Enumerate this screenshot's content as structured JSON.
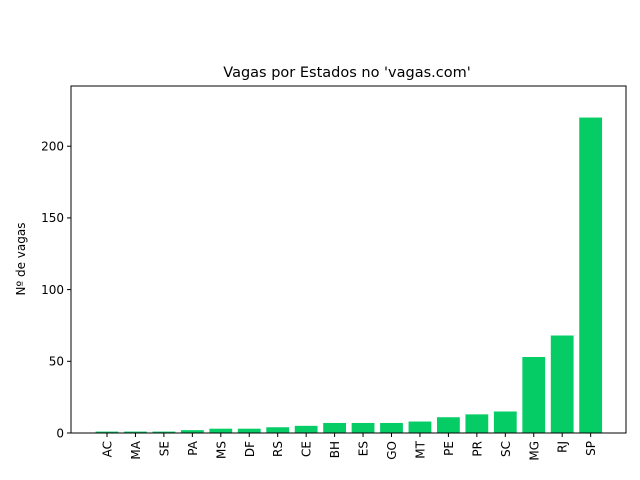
{
  "chart_data": {
    "type": "bar",
    "title": "Vagas por Estados no 'vagas.com'",
    "xlabel": "",
    "ylabel": "Nº de vagas",
    "categories": [
      "AC",
      "MA",
      "SE",
      "PA",
      "MS",
      "DF",
      "RS",
      "CE",
      "BH",
      "ES",
      "GO",
      "MT",
      "PE",
      "PR",
      "SC",
      "MG",
      "RJ",
      "SP"
    ],
    "values": [
      1,
      1,
      1,
      2,
      3,
      3,
      4,
      5,
      7,
      7,
      7,
      8,
      11,
      13,
      15,
      53,
      68,
      220
    ],
    "ylim": [
      0,
      242
    ],
    "yticks": [
      0,
      50,
      100,
      150,
      200
    ],
    "bar_color": "#06cc66",
    "grid": false,
    "legend": "none"
  }
}
